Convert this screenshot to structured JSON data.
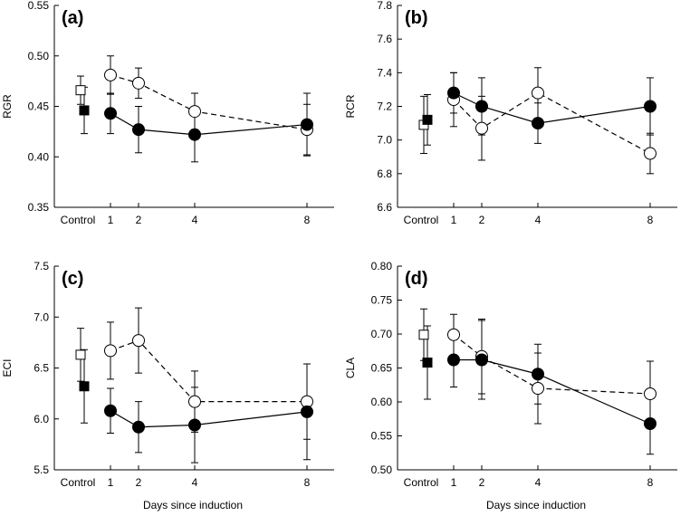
{
  "chart_data": [
    {
      "type": "line",
      "panel_label": "(a)",
      "ylabel": "RGR",
      "xlabel": "",
      "ylim": [
        0.35,
        0.55
      ],
      "yticks": [
        "0.35",
        "0.40",
        "0.45",
        "0.50",
        "0.55"
      ],
      "ytick_values": [
        0.35,
        0.4,
        0.45,
        0.5,
        0.55
      ],
      "x_ticks": [
        {
          "label": "Control",
          "value": -1.1
        },
        {
          "label": "1",
          "value": 1
        },
        {
          "label": "2",
          "value": 2
        },
        {
          "label": "4",
          "value": 4
        },
        {
          "label": "8",
          "value": 8
        }
      ],
      "x": [
        1,
        2,
        4,
        8
      ],
      "control": {
        "open": {
          "x": -0.1,
          "y": 0.466,
          "err": 0.014
        },
        "filled": {
          "x": 0.1,
          "y": 0.446,
          "err": 0.023
        }
      },
      "series": [
        {
          "name": "open",
          "style": "dashed",
          "marker": "open-circle",
          "values": [
            0.481,
            0.473,
            0.445,
            0.427
          ],
          "errors": [
            0.019,
            0.015,
            0.018,
            0.025
          ]
        },
        {
          "name": "filled",
          "style": "solid",
          "marker": "filled-circle",
          "values": [
            0.443,
            0.427,
            0.422,
            0.432
          ],
          "errors": [
            0.02,
            0.023,
            0.027,
            0.031
          ]
        }
      ]
    },
    {
      "type": "line",
      "panel_label": "(b)",
      "ylabel": "RCR",
      "xlabel": "",
      "ylim": [
        6.6,
        7.8
      ],
      "yticks": [
        "6.6",
        "6.8",
        "7.0",
        "7.2",
        "7.4",
        "7.6",
        "7.8"
      ],
      "ytick_values": [
        6.6,
        6.8,
        7.0,
        7.2,
        7.4,
        7.6,
        7.8
      ],
      "x_ticks": [
        {
          "label": "Control",
          "value": -1.1
        },
        {
          "label": "1",
          "value": 1
        },
        {
          "label": "2",
          "value": 2
        },
        {
          "label": "4",
          "value": 4
        },
        {
          "label": "8",
          "value": 8
        }
      ],
      "x": [
        1,
        2,
        4,
        8
      ],
      "control": {
        "open": {
          "x": -0.1,
          "y": 7.09,
          "err": 0.17
        },
        "filled": {
          "x": 0.1,
          "y": 7.12,
          "err": 0.15
        }
      },
      "series": [
        {
          "name": "open",
          "style": "dashed",
          "marker": "open-circle",
          "values": [
            7.24,
            7.07,
            7.28,
            6.92
          ],
          "errors": [
            0.16,
            0.19,
            0.15,
            0.12
          ]
        },
        {
          "name": "filled",
          "style": "solid",
          "marker": "filled-circle",
          "values": [
            7.28,
            7.2,
            7.1,
            7.2
          ],
          "errors": [
            0.12,
            0.17,
            0.12,
            0.17
          ]
        }
      ]
    },
    {
      "type": "line",
      "panel_label": "(c)",
      "ylabel": "ECI",
      "xlabel": "Days since induction",
      "ylim": [
        5.5,
        7.5
      ],
      "yticks": [
        "5.5",
        "6.0",
        "6.5",
        "7.0",
        "7.5"
      ],
      "ytick_values": [
        5.5,
        6.0,
        6.5,
        7.0,
        7.5
      ],
      "x_ticks": [
        {
          "label": "Control",
          "value": -1.1
        },
        {
          "label": "1",
          "value": 1
        },
        {
          "label": "2",
          "value": 2
        },
        {
          "label": "4",
          "value": 4
        },
        {
          "label": "8",
          "value": 8
        }
      ],
      "x": [
        1,
        2,
        4,
        8
      ],
      "control": {
        "open": {
          "x": -0.1,
          "y": 6.63,
          "err": 0.26
        },
        "filled": {
          "x": 0.1,
          "y": 6.32,
          "err": 0.36
        }
      },
      "series": [
        {
          "name": "open",
          "style": "dashed",
          "marker": "open-circle",
          "values": [
            6.67,
            6.77,
            6.17,
            6.17
          ],
          "errors": [
            0.28,
            0.32,
            0.3,
            0.37
          ]
        },
        {
          "name": "filled",
          "style": "solid",
          "marker": "filled-circle",
          "values": [
            6.08,
            5.92,
            5.94,
            6.07
          ],
          "errors": [
            0.22,
            0.25,
            0.37,
            0.47
          ]
        }
      ]
    },
    {
      "type": "line",
      "panel_label": "(d)",
      "ylabel": "CLA",
      "xlabel": "Days since induction",
      "ylim": [
        0.5,
        0.8
      ],
      "yticks": [
        "0.50",
        "0.55",
        "0.60",
        "0.65",
        "0.70",
        "0.75",
        "0.80"
      ],
      "ytick_values": [
        0.5,
        0.55,
        0.6,
        0.65,
        0.7,
        0.75,
        0.8
      ],
      "x_ticks": [
        {
          "label": "Control",
          "value": -1.1
        },
        {
          "label": "1",
          "value": 1
        },
        {
          "label": "2",
          "value": 2
        },
        {
          "label": "4",
          "value": 4
        },
        {
          "label": "8",
          "value": 8
        }
      ],
      "x": [
        1,
        2,
        4,
        8
      ],
      "control": {
        "open": {
          "x": -0.1,
          "y": 0.699,
          "err": 0.038
        },
        "filled": {
          "x": 0.1,
          "y": 0.658,
          "err": 0.054
        }
      },
      "series": [
        {
          "name": "open",
          "style": "dashed",
          "marker": "open-circle",
          "values": [
            0.699,
            0.667,
            0.62,
            0.612
          ],
          "errors": [
            0.03,
            0.055,
            0.052,
            0.048
          ]
        },
        {
          "name": "filled",
          "style": "solid",
          "marker": "filled-circle",
          "values": [
            0.662,
            0.662,
            0.641,
            0.568
          ],
          "errors": [
            0.04,
            0.058,
            0.044,
            0.045
          ]
        }
      ]
    }
  ]
}
